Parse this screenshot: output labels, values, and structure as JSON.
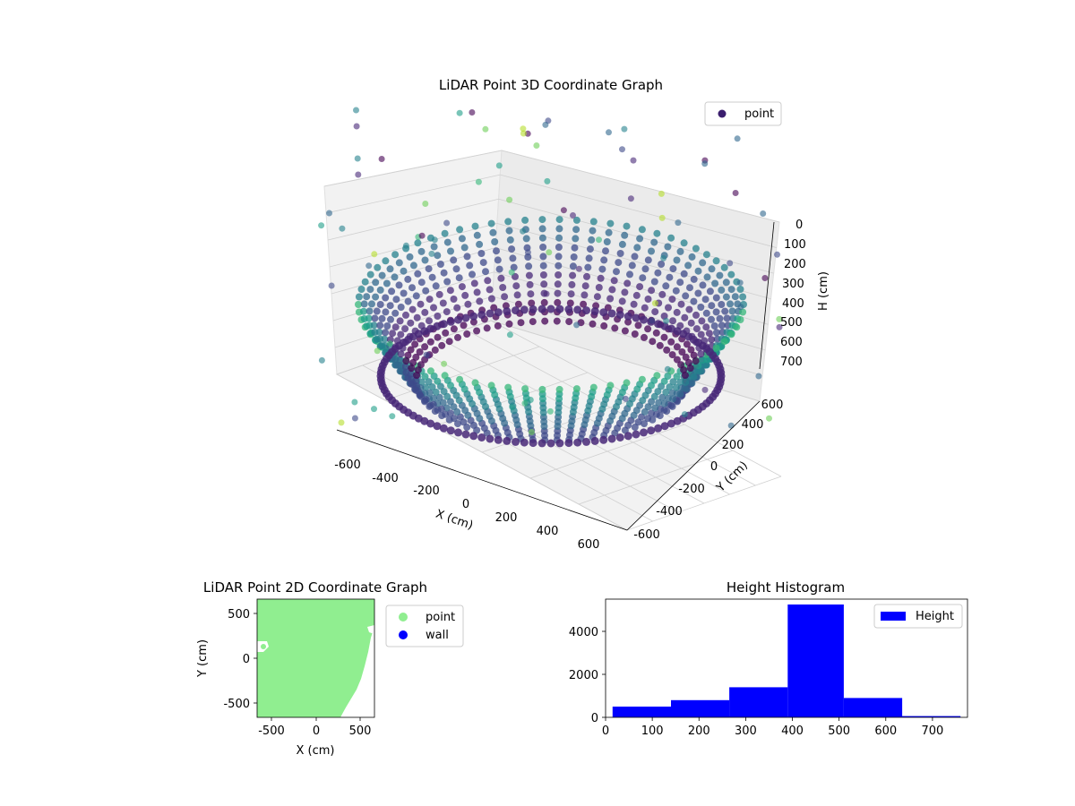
{
  "chart_data": [
    {
      "type": "scatter3d",
      "title": "LiDAR Point 3D Coordinate Graph",
      "xlabel": "X (cm)",
      "ylabel": "Y (cm)",
      "zlabel": "H (cm)",
      "xlim": [
        -650,
        650
      ],
      "ylim": [
        -650,
        650
      ],
      "zlim": [
        0,
        760
      ],
      "z_inverted": true,
      "x_ticks": [
        "-600",
        "-400",
        "-200",
        "0",
        "200",
        "400",
        "600"
      ],
      "y_ticks": [
        "-600",
        "-400",
        "-200",
        "0",
        "200",
        "400",
        "600"
      ],
      "z_ticks": [
        "0",
        "100",
        "200",
        "300",
        "400",
        "500",
        "600",
        "700"
      ],
      "colormap": "viridis",
      "legend": {
        "position": "top-right",
        "entries": [
          {
            "name": "point",
            "color": "#3b1e6e"
          }
        ]
      },
      "grid": true,
      "description_shape": "ring of points at radius ~560 cm, heights ~180-650 cm, dense walls, sparse outliers"
    },
    {
      "type": "scatter",
      "title": "LiDAR Point 2D Coordinate Graph",
      "xlabel": "X (cm)",
      "ylabel": "Y (cm)",
      "xlim": [
        -660,
        660
      ],
      "ylim": [
        -660,
        660
      ],
      "x_ticks": [
        "-500",
        "0",
        "500"
      ],
      "y_ticks": [
        "500",
        "0",
        "-500"
      ],
      "legend": {
        "position": "outside-right",
        "entries": [
          {
            "name": "point",
            "color": "#90ee90"
          },
          {
            "name": "wall",
            "color": "#0000ff"
          }
        ]
      }
    },
    {
      "type": "bar",
      "title": "Height Histogram",
      "xlabel": "",
      "ylabel": "",
      "bins": [
        {
          "x0": 15,
          "x1": 140,
          "count": 500
        },
        {
          "x0": 140,
          "x1": 265,
          "count": 800
        },
        {
          "x0": 265,
          "x1": 390,
          "count": 1400
        },
        {
          "x0": 390,
          "x1": 510,
          "count": 5250
        },
        {
          "x0": 510,
          "x1": 635,
          "count": 900
        },
        {
          "x0": 635,
          "x1": 760,
          "count": 60
        }
      ],
      "xlim": [
        0,
        775
      ],
      "ylim": [
        0,
        5500
      ],
      "x_ticks": [
        "0",
        "100",
        "200",
        "300",
        "400",
        "500",
        "600",
        "700"
      ],
      "y_ticks": [
        "0",
        "2000",
        "4000"
      ],
      "color": "#0000ff",
      "legend": {
        "position": "top-right",
        "entries": [
          {
            "name": "Height",
            "color": "#0000ff"
          }
        ]
      }
    }
  ]
}
